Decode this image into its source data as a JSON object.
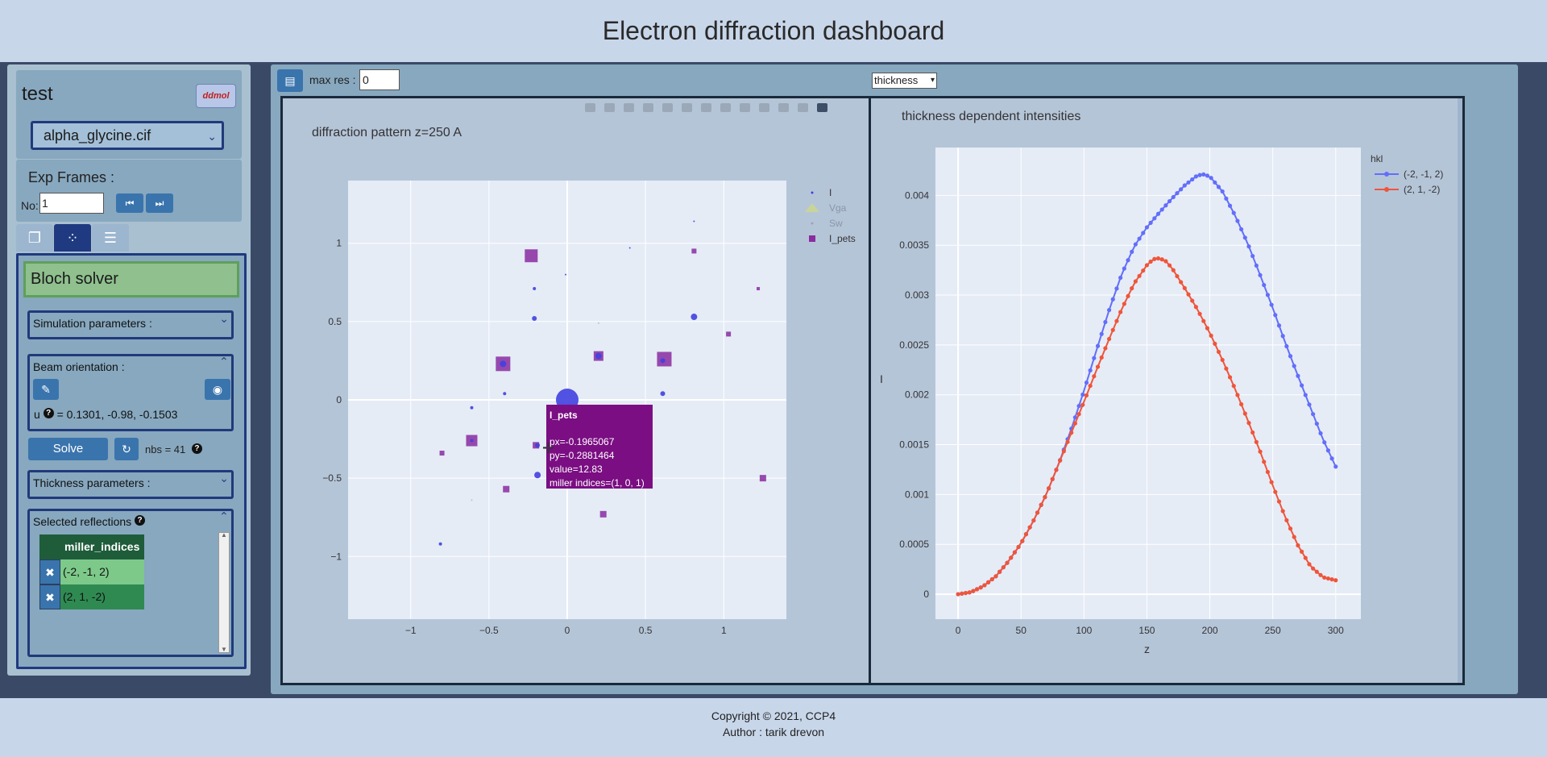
{
  "header": {
    "title": "Electron diffraction dashboard"
  },
  "left": {
    "structure_title": "test",
    "logo_label": "ddmol",
    "cif_file": "alpha_glycine.cif",
    "exp_frames_label": "Exp Frames :",
    "frame_no_label": "No:",
    "frame_no_value": "1",
    "solver_title": "Bloch solver",
    "simulation_label": "Simulation parameters :",
    "beam_label": "Beam orientation :",
    "u_label": "u",
    "u_value": "= 0.1301, -0.98, -0.1503",
    "solve_label": "Solve",
    "nbs_text": "nbs = 41",
    "thickness_label": "Thickness parameters :",
    "selected_label": "Selected reflections",
    "table_header": "miller_indices",
    "rows": [
      "(-2, -1, 2)",
      "(2, 1, -2)"
    ]
  },
  "toolbar": {
    "maxres_label": "max res :",
    "maxres_value": "0",
    "view_select": "thickness"
  },
  "footer": {
    "copyright": "Copyright © 2021, CCP4",
    "author": "Author : tarik drevon"
  },
  "chart_data": [
    {
      "type": "scatter",
      "title": "diffraction pattern z=250 A",
      "xlabel": "",
      "ylabel": "",
      "xlim": [
        -1.4,
        1.4
      ],
      "ylim": [
        -1.4,
        1.4
      ],
      "xticks": [
        -1,
        -0.5,
        0,
        0.5,
        1
      ],
      "yticks": [
        -1,
        -0.5,
        0,
        0.5,
        1
      ],
      "grid": true,
      "legend_position": "top-right",
      "series": [
        {
          "name": "I",
          "marker": "circle",
          "color": "#4040e0",
          "points": [
            {
              "x": 0.0,
              "y": 0.0,
              "s": 14
            },
            {
              "x": -0.21,
              "y": 0.71,
              "s": 2
            },
            {
              "x": 0.4,
              "y": 0.97,
              "s": 1
            },
            {
              "x": -0.01,
              "y": 0.8,
              "s": 1
            },
            {
              "x": 0.81,
              "y": 1.14,
              "s": 1
            },
            {
              "x": -0.21,
              "y": 0.52,
              "s": 3
            },
            {
              "x": 0.81,
              "y": 0.53,
              "s": 4
            },
            {
              "x": -0.41,
              "y": 0.23,
              "s": 4
            },
            {
              "x": 0.2,
              "y": 0.28,
              "s": 4
            },
            {
              "x": 0.61,
              "y": 0.25,
              "s": 3
            },
            {
              "x": -0.4,
              "y": 0.04,
              "s": 2
            },
            {
              "x": 0.61,
              "y": 0.04,
              "s": 3
            },
            {
              "x": -0.61,
              "y": -0.05,
              "s": 2
            },
            {
              "x": -0.61,
              "y": -0.26,
              "s": 2
            },
            {
              "x": -0.19,
              "y": -0.29,
              "s": 3
            },
            {
              "x": -0.19,
              "y": -0.48,
              "s": 4
            },
            {
              "x": -0.81,
              "y": -0.92,
              "s": 2
            }
          ]
        },
        {
          "name": "Vga",
          "marker": "triangle",
          "color": "#c8d49a",
          "points": []
        },
        {
          "name": "Sw",
          "marker": "circle",
          "color": "#a0a0c0",
          "points": [
            {
              "x": -0.61,
              "y": -0.64,
              "s": 1
            },
            {
              "x": 0.2,
              "y": 0.49,
              "s": 1
            }
          ]
        },
        {
          "name": "I_pets",
          "marker": "square",
          "color": "#8a2ba0",
          "points": [
            {
              "x": -0.23,
              "y": 0.92,
              "s": 8
            },
            {
              "x": 0.81,
              "y": 0.95,
              "s": 3
            },
            {
              "x": 1.22,
              "y": 0.71,
              "s": 2
            },
            {
              "x": 1.03,
              "y": 0.42,
              "s": 3
            },
            {
              "x": -0.41,
              "y": 0.23,
              "s": 9
            },
            {
              "x": 0.2,
              "y": 0.28,
              "s": 6
            },
            {
              "x": 0.62,
              "y": 0.26,
              "s": 9
            },
            {
              "x": -0.61,
              "y": -0.26,
              "s": 7
            },
            {
              "x": -0.8,
              "y": -0.34,
              "s": 3
            },
            {
              "x": -0.2,
              "y": -0.29,
              "s": 4
            },
            {
              "x": -0.39,
              "y": -0.57,
              "s": 4
            },
            {
              "x": 0.23,
              "y": -0.73,
              "s": 4
            },
            {
              "x": 1.25,
              "y": -0.5,
              "s": 4
            }
          ]
        }
      ],
      "tooltip": {
        "title": "I_pets",
        "lines": [
          "px=-0.1965067",
          "py=-0.2881464",
          "value=12.83",
          "miller indices=(1, 0, 1)"
        ]
      }
    },
    {
      "type": "line",
      "title": "thickness dependent intensities",
      "xlabel": "z",
      "ylabel": "I",
      "xlim": [
        -18,
        320
      ],
      "ylim": [
        -0.00025,
        0.00448
      ],
      "xticks": [
        0,
        50,
        100,
        150,
        200,
        250,
        300
      ],
      "yticks": [
        "0",
        "0.0005",
        "0.001",
        "0.0015",
        "0.002",
        "0.0025",
        "0.003",
        "0.0035",
        "0.004"
      ],
      "grid": true,
      "legend_title": "hkl",
      "legend_position": "top-right",
      "series": [
        {
          "name": "(-2, -1, 2)",
          "color": "#636efa",
          "x": [
            0,
            10,
            20,
            30,
            40,
            50,
            60,
            70,
            80,
            90,
            100,
            110,
            120,
            130,
            140,
            150,
            160,
            170,
            180,
            190,
            195,
            200,
            210,
            220,
            230,
            240,
            250,
            260,
            270,
            280,
            290,
            300
          ],
          "y": [
            0.0,
            2e-05,
            8e-05,
            0.00018,
            0.00033,
            0.00051,
            0.00074,
            0.001,
            0.00131,
            0.00166,
            0.00204,
            0.00245,
            0.00285,
            0.00321,
            0.00349,
            0.00368,
            0.00383,
            0.00397,
            0.0041,
            0.0042,
            0.00421,
            0.00419,
            0.00404,
            0.0038,
            0.00352,
            0.0032,
            0.00287,
            0.00252,
            0.00219,
            0.00187,
            0.00155,
            0.00128
          ]
        },
        {
          "name": "(2, 1, -2)",
          "color": "#ef553b",
          "x": [
            0,
            10,
            20,
            30,
            40,
            50,
            60,
            70,
            80,
            90,
            100,
            110,
            120,
            130,
            140,
            150,
            155,
            160,
            165,
            170,
            180,
            190,
            200,
            210,
            220,
            230,
            240,
            250,
            260,
            270,
            280,
            290,
            300
          ],
          "y": [
            0.0,
            2e-05,
            8e-05,
            0.00018,
            0.00033,
            0.00051,
            0.00074,
            0.001,
            0.00131,
            0.00162,
            0.00193,
            0.00225,
            0.00256,
            0.00286,
            0.00312,
            0.0033,
            0.00336,
            0.00337,
            0.00334,
            0.00327,
            0.00307,
            0.00286,
            0.00262,
            0.00235,
            0.00206,
            0.00175,
            0.00143,
            0.00109,
            0.00077,
            0.00049,
            0.00028,
            0.00017,
            0.00014
          ]
        }
      ]
    }
  ]
}
